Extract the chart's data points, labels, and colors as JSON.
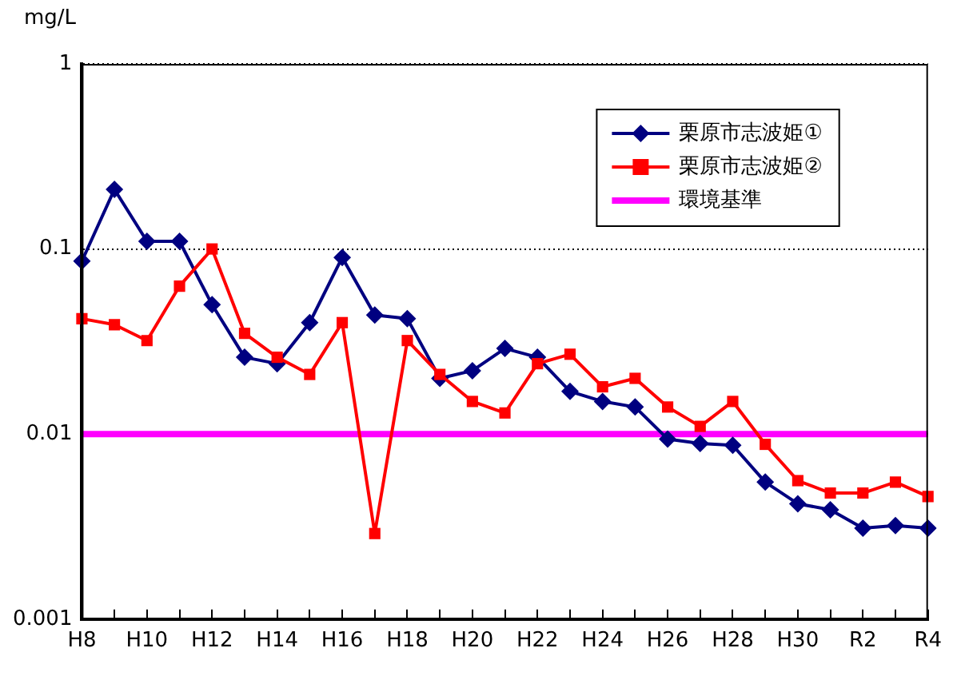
{
  "chart_data": {
    "type": "line",
    "ylabel": "mg/L",
    "categories": [
      "H8",
      null,
      "H10",
      null,
      "H12",
      null,
      "H14",
      null,
      "H16",
      null,
      "H18",
      null,
      "H20",
      null,
      "H22",
      null,
      "H24",
      null,
      "H26",
      null,
      "H28",
      null,
      "H30",
      null,
      "R2",
      null,
      "R4"
    ],
    "series": [
      {
        "name": "栗原市志波姫①",
        "color": "#000080",
        "marker": "diamond",
        "values": [
          0.086,
          0.21,
          0.11,
          0.11,
          0.05,
          0.026,
          0.024,
          0.04,
          0.09,
          0.044,
          0.042,
          0.02,
          0.022,
          0.029,
          0.026,
          0.017,
          0.015,
          0.014,
          0.0094,
          0.0089,
          0.0087,
          0.0055,
          0.0042,
          0.0039,
          0.0031,
          0.0032,
          0.0031
        ]
      },
      {
        "name": "栗原市志波姫②",
        "color": "#ff0000",
        "marker": "square",
        "values": [
          0.042,
          0.039,
          0.032,
          0.063,
          0.1,
          0.035,
          0.026,
          0.021,
          0.04,
          0.0029,
          0.032,
          0.021,
          0.015,
          0.013,
          0.024,
          0.027,
          0.018,
          0.02,
          0.014,
          0.011,
          0.015,
          0.0088,
          0.0056,
          0.0048,
          0.0048,
          0.0055,
          0.0046
        ]
      }
    ],
    "ref_lines": [
      {
        "axis": "y",
        "value": 0.01,
        "label": "環境基準",
        "color": "#ff00ff"
      }
    ],
    "log": "y",
    "ylim": [
      0.001,
      1
    ],
    "yticks": [
      0.001,
      0.01,
      0.1,
      1
    ],
    "grid": "y",
    "line_style": "solid",
    "legend": "top right"
  }
}
